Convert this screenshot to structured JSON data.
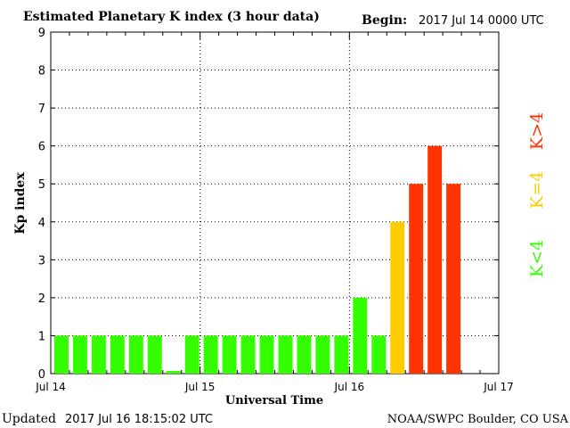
{
  "chart_data": {
    "type": "bar",
    "title": "Estimated Planetary K index (3 hour data)",
    "begin_label": "Begin:",
    "begin_value": "2017 Jul 14 0000 UTC",
    "xlabel": "Universal Time",
    "ylabel": "Kp index",
    "ylim": [
      0,
      9
    ],
    "yticks": [
      "0",
      "1",
      "2",
      "3",
      "4",
      "5",
      "6",
      "7",
      "8",
      "9"
    ],
    "xticks": [
      "Jul 14",
      "Jul 15",
      "Jul 16",
      "Jul 17"
    ],
    "grid": true,
    "values": [
      1,
      1,
      1,
      1,
      1,
      1,
      0.07,
      1,
      1,
      1,
      1,
      1,
      1,
      1,
      1,
      1,
      2,
      1,
      4,
      5,
      6,
      5
    ],
    "legend": [
      {
        "label": "K<4",
        "color": "#33ff00"
      },
      {
        "label": "K=4",
        "color": "#ffcc00"
      },
      {
        "label": "K>4",
        "color": "#ff3300"
      }
    ]
  },
  "footer": {
    "updated_label": "Updated",
    "updated_value": "2017 Jul 16 18:15:02 UTC",
    "credit": "NOAA/SWPC Boulder, CO USA"
  }
}
